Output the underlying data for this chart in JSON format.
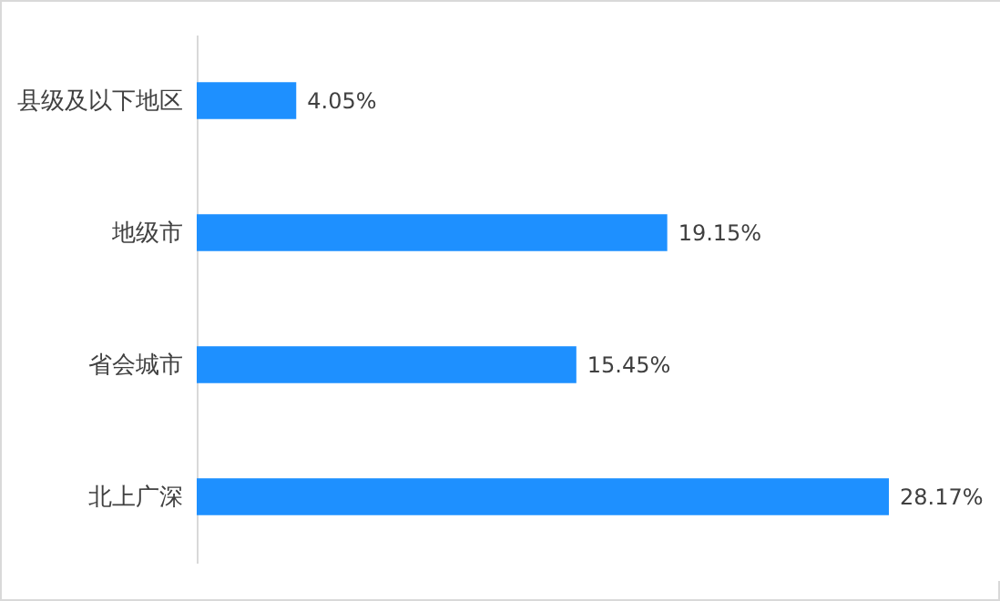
{
  "chart_data": {
    "type": "bar",
    "orientation": "horizontal",
    "categories": [
      "县级及以下地区",
      "地级市",
      "省会城市",
      "北上广深"
    ],
    "values": [
      4.05,
      19.15,
      15.45,
      28.17
    ],
    "value_labels": [
      "4.05%",
      "19.15%",
      "15.45%",
      "28.17%"
    ],
    "color": "#1e90ff",
    "grid": false
  }
}
